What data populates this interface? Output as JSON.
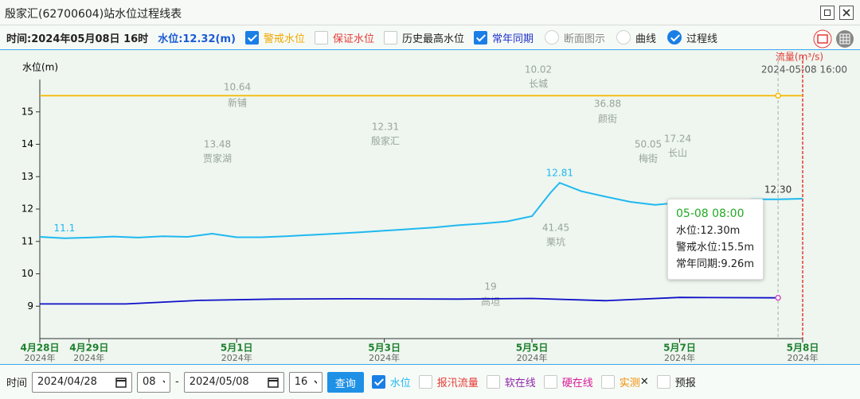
{
  "window": {
    "title": "殷家汇(62700604)站水位过程线表"
  },
  "toolbar": {
    "time": "时间:2024年05月08日 16时",
    "level": "水位:12.32(m)",
    "checks": [
      {
        "label": "警戒水位",
        "checked": true,
        "color": "#f0a800"
      },
      {
        "label": "保证水位",
        "checked": false,
        "color": "#e53935"
      },
      {
        "label": "历史最高水位",
        "checked": false,
        "color": "#222222"
      },
      {
        "label": "常年同期",
        "checked": true,
        "color": "#2233cc"
      }
    ],
    "radios": [
      {
        "label": "断面图示",
        "checked": false,
        "color": "#888888"
      },
      {
        "label": "曲线",
        "checked": false,
        "color": "#222222"
      },
      {
        "label": "过程线",
        "checked": true,
        "color": "#222222"
      }
    ]
  },
  "map_labels": [
    "10.64",
    "新铺",
    "12.31",
    "殷家汇",
    "13.48",
    "贾家湖",
    "10.02",
    "长城",
    "36.88",
    "颜街",
    "50.05",
    "梅街",
    "17.24",
    "长山",
    "41.45",
    "栗坑",
    "19",
    "高坦"
  ],
  "chart_data": {
    "type": "line",
    "ylabel": "水位(m)",
    "y2label": "流量(m³/s)",
    "y2time": "2024-05-08 16:00",
    "xlim": [
      "2024-04-28 08:00",
      "2024-05-08 16:00"
    ],
    "xticks": [
      {
        "value": "2024-04-28 08:00",
        "label": "4月28日"
      },
      {
        "value": "2024-04-29 00:00",
        "label": "4月29日"
      },
      {
        "value": "2024-05-01 00:00",
        "label": "5月1日"
      },
      {
        "value": "2024-05-03 00:00",
        "label": "5月3日"
      },
      {
        "value": "2024-05-05 00:00",
        "label": "5月5日"
      },
      {
        "value": "2024-05-07 00:00",
        "label": "5月7日"
      },
      {
        "value": "2024-05-08 16:00",
        "label": "5月8日"
      }
    ],
    "xtick_sublabels": [
      "2024年",
      "2024年",
      "2024年",
      "2024年",
      "2024年",
      "2024年",
      "2024年"
    ],
    "ylim": [
      8,
      16
    ],
    "yticks": [
      9,
      10,
      11,
      12,
      13,
      14,
      15
    ],
    "grid": false,
    "series": [
      {
        "color": "#1fb8f0",
        "x": [
          "2024-04-28 08:00",
          "2024-04-28 16:00",
          "2024-04-29 00:00",
          "2024-04-29 08:00",
          "2024-04-29 16:00",
          "2024-04-30 00:00",
          "2024-04-30 08:00",
          "2024-04-30 16:00",
          "2024-05-01 00:00",
          "2024-05-01 08:00",
          "2024-05-01 16:00",
          "2024-05-02 00:00",
          "2024-05-02 08:00",
          "2024-05-02 16:00",
          "2024-05-03 00:00",
          "2024-05-03 08:00",
          "2024-05-03 16:00",
          "2024-05-04 00:00",
          "2024-05-04 08:00",
          "2024-05-04 16:00",
          "2024-05-05 00:00",
          "2024-05-05 06:00",
          "2024-05-05 09:00",
          "2024-05-05 16:00",
          "2024-05-06 00:00",
          "2024-05-06 08:00",
          "2024-05-06 16:00",
          "2024-05-07 00:00",
          "2024-05-07 08:00",
          "2024-05-07 16:00",
          "2024-05-08 00:00",
          "2024-05-08 08:00",
          "2024-05-08 16:00"
        ],
        "values": [
          11.14,
          11.1,
          11.12,
          11.15,
          11.12,
          11.16,
          11.14,
          11.24,
          11.13,
          11.13,
          11.16,
          11.2,
          11.24,
          11.28,
          11.33,
          11.38,
          11.43,
          11.5,
          11.55,
          11.62,
          11.78,
          12.5,
          12.81,
          12.55,
          12.38,
          12.22,
          12.13,
          12.2,
          12.25,
          12.27,
          12.3,
          12.3,
          12.32
        ],
        "value_labels": [
          null,
          "11.1",
          null,
          null,
          null,
          null,
          null,
          null,
          null,
          null,
          null,
          null,
          null,
          null,
          null,
          null,
          null,
          null,
          null,
          null,
          null,
          null,
          "12.81",
          null,
          null,
          null,
          null,
          null,
          null,
          null,
          null,
          "12.30",
          null
        ]
      },
      {
        "color": "#f5b800",
        "x": [
          "2024-04-28 08:00",
          "2024-05-08 16:00"
        ],
        "values": [
          15.5,
          15.5
        ]
      },
      {
        "color": "#1010c8",
        "x": [
          "2024-04-28 08:00",
          "2024-04-29 12:00",
          "2024-04-30 12:00",
          "2024-05-01 12:00",
          "2024-05-02 12:00",
          "2024-05-04 00:00",
          "2024-05-05 00:00",
          "2024-05-06 00:00",
          "2024-05-07 00:00",
          "2024-05-08 08:00"
        ],
        "values": [
          9.07,
          9.07,
          9.18,
          9.22,
          9.23,
          9.22,
          9.24,
          9.17,
          9.27,
          9.26
        ]
      }
    ],
    "tooltip": {
      "title": "05-08 08:00",
      "lines": [
        "水位:12.30m",
        "警戒水位:15.5m",
        "常年同期:9.26m"
      ]
    }
  },
  "bottom": {
    "time_label": "时间",
    "start_date": "2024/04/28",
    "start_hour": "08",
    "dash": "-",
    "end_date": "2024/05/08",
    "end_hour": "16",
    "button": "查询",
    "checks": [
      {
        "label": "水位",
        "checked": true,
        "color": "#1fb8f0"
      },
      {
        "label": "报汛流量",
        "checked": false,
        "color": "#e53935"
      },
      {
        "label": "软在线",
        "checked": false,
        "color": "#8e24aa"
      },
      {
        "label": "硬在线",
        "checked": false,
        "color": "#d81b9a"
      },
      {
        "label": "实测",
        "checked": false,
        "color": "#f08c00",
        "suffix": "✕"
      },
      {
        "label": "预报",
        "checked": false,
        "color": "#222222"
      }
    ]
  }
}
